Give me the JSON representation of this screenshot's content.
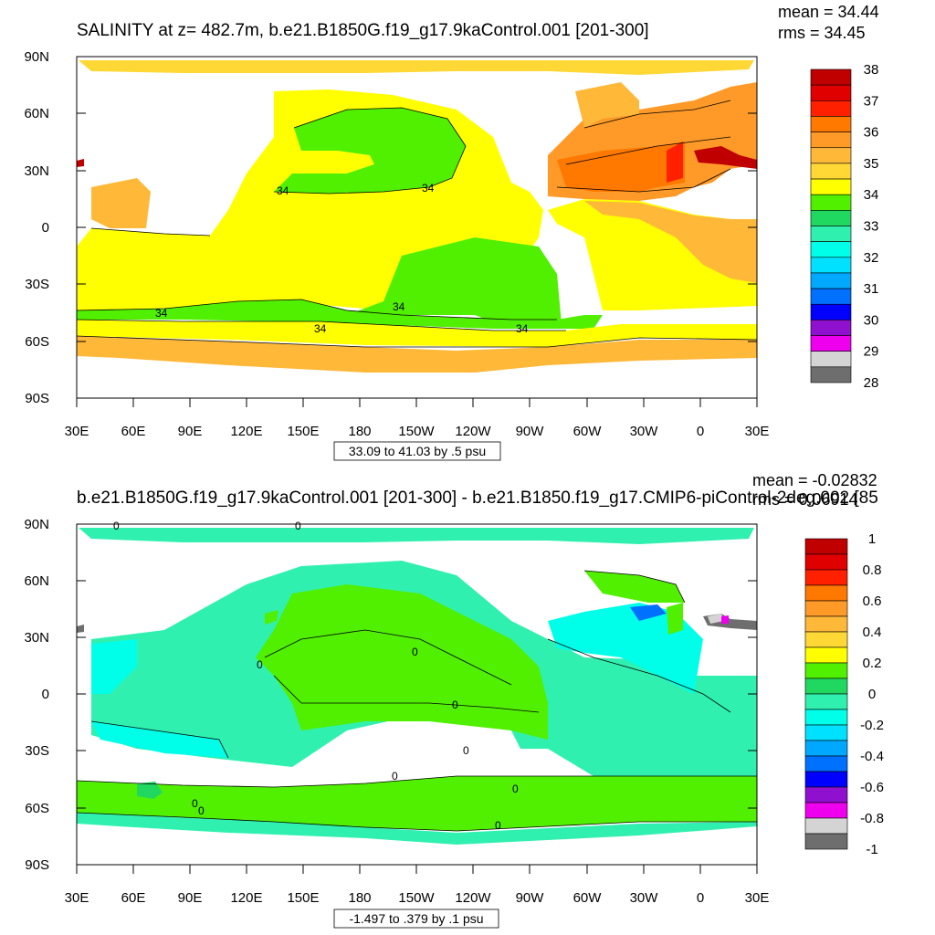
{
  "top": {
    "title": "SALINITY at z= 482.7m, b.e21.B1850G.f19_g17.9kaControl.001 [201-300]",
    "mean_text": "mean = 34.44",
    "rms_text": "rms = 34.45",
    "info_box": "33.09 to 41.03 by .5 psu",
    "colorbar_labels": [
      "38",
      "37",
      "36",
      "35",
      "34",
      "33",
      "32",
      "31",
      "30",
      "29",
      "28"
    ],
    "colorbar_colors": [
      "#c00000",
      "#e00000",
      "#ff2000",
      "#ff7800",
      "#ff9a28",
      "#ffb838",
      "#ffd835",
      "#ffff00",
      "#50f000",
      "#20d860",
      "#30f0b0",
      "#00ffe8",
      "#00e0ff",
      "#00a8ff",
      "#0070ff",
      "#0000ff",
      "#9010d0",
      "#ee00ee",
      "#d4d4d4",
      "#6e6e6e"
    ],
    "contour_labels": [
      "34",
      "34",
      "34",
      "34",
      "34",
      "34"
    ]
  },
  "bottom": {
    "title": "b.e21.B1850G.f19_g17.9kaControl.001 [201-300] - b.e21.B1850.f19_g17.CMIP6-piControl-2deg.002 [85",
    "mean_text": "mean = -0.02832",
    "rms_text": "rms = 0.06914",
    "info_box": "-1.497 to .379 by .1 psu",
    "colorbar_labels": [
      "1",
      "0.8",
      "0.6",
      "0.4",
      "0.2",
      "0",
      "-0.2",
      "-0.4",
      "-0.6",
      "-0.8",
      "-1"
    ],
    "colorbar_colors": [
      "#c00000",
      "#e00000",
      "#ff2000",
      "#ff7800",
      "#ff9a28",
      "#ffb838",
      "#ffd835",
      "#ffff00",
      "#50f000",
      "#20d860",
      "#30f0b0",
      "#00ffe8",
      "#00e0ff",
      "#00a8ff",
      "#0070ff",
      "#0000ff",
      "#9010d0",
      "#ee00ee",
      "#d4d4d4",
      "#6e6e6e"
    ],
    "contour_labels": [
      "0",
      "0",
      "0",
      "0",
      "0",
      "0",
      "0",
      "0",
      "0",
      "0",
      "0"
    ]
  },
  "lat_ticks": [
    "90N",
    "60N",
    "30N",
    "0",
    "30S",
    "60S",
    "90S"
  ],
  "lon_ticks": [
    "30E",
    "60E",
    "90E",
    "120E",
    "150E",
    "180",
    "150W",
    "120W",
    "90W",
    "60W",
    "30W",
    "0",
    "30E"
  ]
}
